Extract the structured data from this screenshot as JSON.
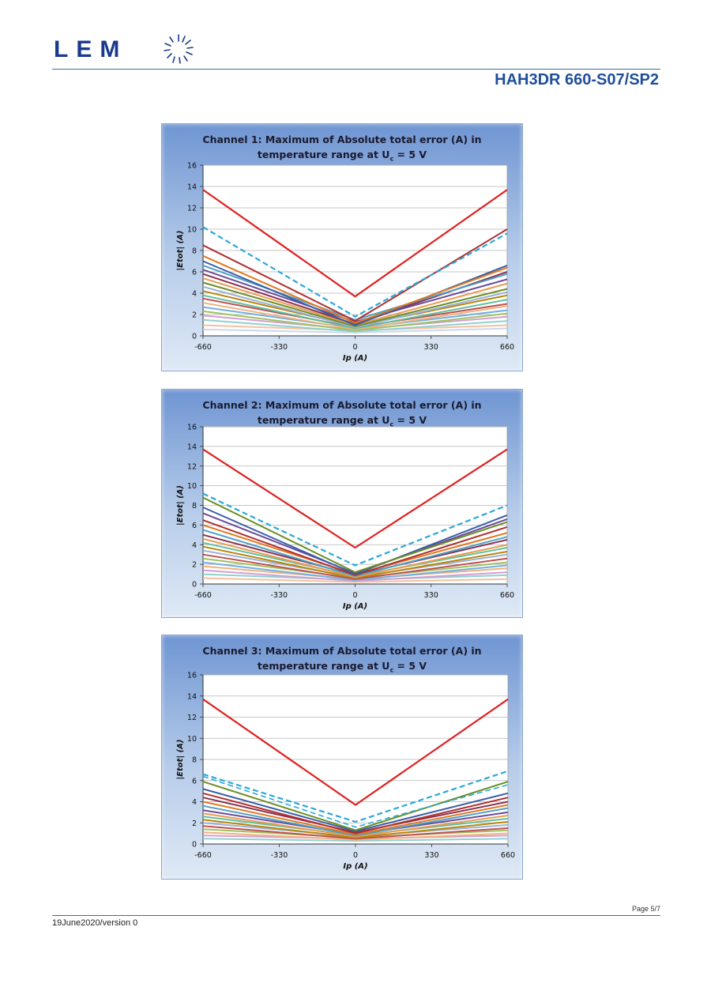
{
  "header": {
    "logo_text": "LEM",
    "document_title": "HAH3DR 660-S07/SP2"
  },
  "footer": {
    "page": "Page 5/7",
    "version": "19June2020/version 0"
  },
  "colors": {
    "limit": "#e02020",
    "dashed": "#2aa8d8",
    "frame_top": "#6f95d2",
    "title": "#1f4e9a"
  },
  "chart_data": [
    {
      "type": "line",
      "title_line1": "Channel 1: Maximum of Absolute total error (A) in",
      "title_line2": "temperature range at U",
      "title_sub": "c",
      "title_tail": " = 5 V",
      "xlabel": "Ip (A)",
      "ylabel": "|Etot| (A)",
      "x": [
        -660,
        0,
        660
      ],
      "xticks": [
        "-660",
        "-330",
        "0",
        "330",
        "660"
      ],
      "yticks": [
        "0",
        "2",
        "4",
        "6",
        "8",
        "10",
        "12",
        "14",
        "16"
      ],
      "xlim": [
        -660,
        660
      ],
      "ylim": [
        0,
        16
      ],
      "grid": true,
      "series": [
        {
          "values": [
            13.7,
            3.7,
            13.7
          ],
          "color": "#e02020",
          "style": "solid",
          "width": 2.2
        },
        {
          "values": [
            10.2,
            1.8,
            9.6
          ],
          "color": "#2aa8d8",
          "style": "dashed",
          "width": 2.2
        },
        {
          "values": [
            8.5,
            1.4,
            10.0
          ],
          "color": "#b03030",
          "style": "solid",
          "width": 2
        },
        {
          "values": [
            7.5,
            1.2,
            6.4
          ],
          "color": "#e07a20",
          "style": "solid",
          "width": 2
        },
        {
          "values": [
            7.0,
            1.0,
            6.6
          ],
          "color": "#3a5fa8",
          "style": "solid",
          "width": 2
        },
        {
          "values": [
            6.6,
            1.5,
            5.8
          ],
          "color": "#4aa0c8",
          "style": "solid",
          "width": 2
        },
        {
          "values": [
            6.2,
            1.3,
            5.3
          ],
          "color": "#6a4a9a",
          "style": "solid",
          "width": 2
        },
        {
          "values": [
            5.8,
            1.1,
            6.0
          ],
          "color": "#8a3050",
          "style": "solid",
          "width": 2
        },
        {
          "values": [
            5.4,
            1.0,
            4.9
          ],
          "color": "#e89a50",
          "style": "solid",
          "width": 2
        },
        {
          "values": [
            5.0,
            0.9,
            4.4
          ],
          "color": "#6b8e23",
          "style": "solid",
          "width": 2
        },
        {
          "values": [
            4.6,
            0.8,
            4.1
          ],
          "color": "#9ab0d8",
          "style": "solid",
          "width": 2
        },
        {
          "values": [
            4.2,
            0.9,
            3.8
          ],
          "color": "#b8860b",
          "style": "solid",
          "width": 2
        },
        {
          "values": [
            3.8,
            0.7,
            3.4
          ],
          "color": "#5fbf9f",
          "style": "solid",
          "width": 2
        },
        {
          "values": [
            3.5,
            0.8,
            3.0
          ],
          "color": "#c05050",
          "style": "solid",
          "width": 2
        },
        {
          "values": [
            3.1,
            0.6,
            2.8
          ],
          "color": "#f0b080",
          "style": "solid",
          "width": 2
        },
        {
          "values": [
            2.7,
            0.7,
            2.4
          ],
          "color": "#70b0e0",
          "style": "solid",
          "width": 2
        },
        {
          "values": [
            2.3,
            0.5,
            2.1
          ],
          "color": "#a0c060",
          "style": "solid",
          "width": 2
        },
        {
          "values": [
            1.9,
            0.6,
            1.8
          ],
          "color": "#d0a0d0",
          "style": "solid",
          "width": 2
        },
        {
          "values": [
            1.5,
            0.4,
            1.4
          ],
          "color": "#90d0d0",
          "style": "solid",
          "width": 2
        },
        {
          "values": [
            1.0,
            0.5,
            1.0
          ],
          "color": "#f4c0a0",
          "style": "solid",
          "width": 2
        },
        {
          "values": [
            0.6,
            0.3,
            0.7
          ],
          "color": "#c8d8f0",
          "style": "solid",
          "width": 2
        }
      ]
    },
    {
      "type": "line",
      "title_line1": "Channel 2: Maximum of Absolute total error (A) in",
      "title_line2": "temperature range at U",
      "title_sub": "c",
      "title_tail": " = 5 V",
      "xlabel": "Ip (A)",
      "ylabel": "|Etot| (A)",
      "x": [
        -660,
        0,
        660
      ],
      "xticks": [
        "-660",
        "-330",
        "0",
        "330",
        "660"
      ],
      "yticks": [
        "0",
        "2",
        "4",
        "6",
        "8",
        "10",
        "12",
        "14",
        "16"
      ],
      "xlim": [
        -660,
        660
      ],
      "ylim": [
        0,
        16
      ],
      "grid": true,
      "series": [
        {
          "values": [
            13.7,
            3.7,
            13.7
          ],
          "color": "#e02020",
          "style": "solid",
          "width": 2.2
        },
        {
          "values": [
            9.2,
            1.9,
            8.0
          ],
          "color": "#2aa8d8",
          "style": "dashed",
          "width": 2.2
        },
        {
          "values": [
            8.8,
            1.2,
            6.3
          ],
          "color": "#6b8e23",
          "style": "solid",
          "width": 2
        },
        {
          "values": [
            7.8,
            1.0,
            7.0
          ],
          "color": "#3a5fa8",
          "style": "solid",
          "width": 2
        },
        {
          "values": [
            7.2,
            1.1,
            6.6
          ],
          "color": "#6a4a9a",
          "style": "solid",
          "width": 2
        },
        {
          "values": [
            6.5,
            0.9,
            5.8
          ],
          "color": "#b03030",
          "style": "solid",
          "width": 2
        },
        {
          "values": [
            6.0,
            1.0,
            5.2
          ],
          "color": "#e07a20",
          "style": "solid",
          "width": 2
        },
        {
          "values": [
            5.5,
            0.8,
            4.8
          ],
          "color": "#4aa0c8",
          "style": "solid",
          "width": 2
        },
        {
          "values": [
            5.0,
            0.9,
            4.5
          ],
          "color": "#8a3050",
          "style": "solid",
          "width": 2
        },
        {
          "values": [
            4.6,
            0.7,
            4.0
          ],
          "color": "#e89a50",
          "style": "solid",
          "width": 2
        },
        {
          "values": [
            4.2,
            0.8,
            3.7
          ],
          "color": "#5fbf9f",
          "style": "solid",
          "width": 2
        },
        {
          "values": [
            3.8,
            0.6,
            3.3
          ],
          "color": "#b8860b",
          "style": "solid",
          "width": 2
        },
        {
          "values": [
            3.4,
            0.7,
            3.0
          ],
          "color": "#9ab0d8",
          "style": "solid",
          "width": 2
        },
        {
          "values": [
            3.0,
            0.5,
            2.6
          ],
          "color": "#c05050",
          "style": "solid",
          "width": 2
        },
        {
          "values": [
            2.6,
            0.6,
            2.2
          ],
          "color": "#a0c060",
          "style": "solid",
          "width": 2
        },
        {
          "values": [
            2.2,
            0.4,
            1.9
          ],
          "color": "#70b0e0",
          "style": "solid",
          "width": 2
        },
        {
          "values": [
            1.8,
            0.5,
            1.6
          ],
          "color": "#f0b080",
          "style": "solid",
          "width": 2
        },
        {
          "values": [
            1.4,
            0.3,
            1.2
          ],
          "color": "#d0a0d0",
          "style": "solid",
          "width": 2
        },
        {
          "values": [
            1.0,
            0.4,
            0.9
          ],
          "color": "#90d0d0",
          "style": "solid",
          "width": 2
        },
        {
          "values": [
            0.6,
            0.2,
            0.5
          ],
          "color": "#f4c0a0",
          "style": "solid",
          "width": 2
        }
      ]
    },
    {
      "type": "line",
      "title_line1": "Channel 3: Maximum of Absolute total error (A) in",
      "title_line2": "temperature range at U",
      "title_sub": "c",
      "title_tail": " = 5 V",
      "xlabel": "Ip (A)",
      "ylabel": "|Etot| (A)",
      "x": [
        -660,
        0,
        660
      ],
      "xticks": [
        "-660",
        "-330",
        "0",
        "330",
        "660"
      ],
      "yticks": [
        "0",
        "2",
        "4",
        "6",
        "8",
        "10",
        "12",
        "14",
        "16"
      ],
      "xlim": [
        -660,
        660
      ],
      "ylim": [
        0,
        16
      ],
      "grid": true,
      "series": [
        {
          "values": [
            13.7,
            3.7,
            13.7
          ],
          "color": "#e02020",
          "style": "solid",
          "width": 2.2
        },
        {
          "values": [
            6.6,
            2.1,
            6.9
          ],
          "color": "#2aa8d8",
          "style": "dashed",
          "width": 2.2
        },
        {
          "values": [
            6.4,
            1.6,
            5.6
          ],
          "color": "#2aa8d8",
          "style": "dashed",
          "width": 1.6
        },
        {
          "values": [
            5.9,
            1.3,
            5.9
          ],
          "color": "#6b8e23",
          "style": "solid",
          "width": 2
        },
        {
          "values": [
            5.2,
            1.2,
            4.8
          ],
          "color": "#3a5fa8",
          "style": "solid",
          "width": 2
        },
        {
          "values": [
            4.8,
            1.0,
            4.4
          ],
          "color": "#b03030",
          "style": "solid",
          "width": 2
        },
        {
          "values": [
            4.4,
            1.1,
            4.0
          ],
          "color": "#8a3050",
          "style": "solid",
          "width": 2
        },
        {
          "values": [
            4.0,
            0.9,
            3.7
          ],
          "color": "#e07a20",
          "style": "solid",
          "width": 2
        },
        {
          "values": [
            3.6,
            0.8,
            3.4
          ],
          "color": "#4aa0c8",
          "style": "solid",
          "width": 2
        },
        {
          "values": [
            3.2,
            0.9,
            3.0
          ],
          "color": "#6a4a9a",
          "style": "solid",
          "width": 2
        },
        {
          "values": [
            2.9,
            0.7,
            2.7
          ],
          "color": "#e89a50",
          "style": "solid",
          "width": 2
        },
        {
          "values": [
            2.6,
            0.8,
            2.4
          ],
          "color": "#5fbf9f",
          "style": "solid",
          "width": 2
        },
        {
          "values": [
            2.3,
            0.6,
            2.1
          ],
          "color": "#b8860b",
          "style": "solid",
          "width": 2
        },
        {
          "values": [
            2.0,
            0.7,
            1.8
          ],
          "color": "#9ab0d8",
          "style": "solid",
          "width": 2
        },
        {
          "values": [
            1.7,
            0.5,
            1.5
          ],
          "color": "#c05050",
          "style": "solid",
          "width": 2
        },
        {
          "values": [
            1.4,
            0.6,
            1.3
          ],
          "color": "#a0c060",
          "style": "solid",
          "width": 2
        },
        {
          "values": [
            1.1,
            0.4,
            1.0
          ],
          "color": "#f0b080",
          "style": "solid",
          "width": 2
        },
        {
          "values": [
            0.8,
            0.5,
            0.8
          ],
          "color": "#d0a0d0",
          "style": "solid",
          "width": 2
        },
        {
          "values": [
            0.5,
            0.3,
            0.5
          ],
          "color": "#90d0d0",
          "style": "solid",
          "width": 2
        }
      ]
    }
  ]
}
